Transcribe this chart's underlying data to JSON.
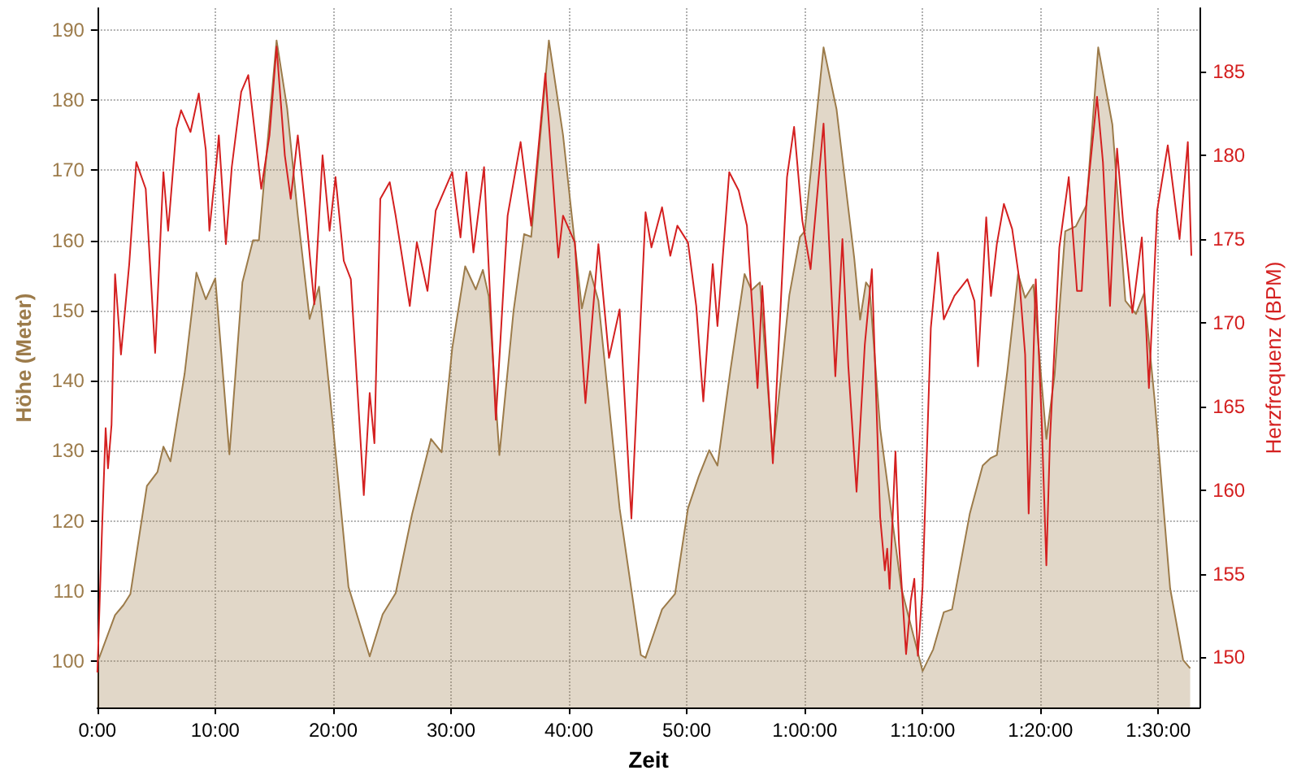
{
  "chart_data": {
    "type": "line",
    "xlabel": "Zeit",
    "ylabel": "Höhe (Meter)",
    "y2label": "Herzfrequenz (BPM)",
    "xlim": [
      0,
      93.5
    ],
    "xticks": [
      {
        "value": 0,
        "label": "0:00"
      },
      {
        "value": 10,
        "label": "10:00"
      },
      {
        "value": 20,
        "label": "20:00"
      },
      {
        "value": 30,
        "label": "30:00"
      },
      {
        "value": 40,
        "label": "40:00"
      },
      {
        "value": 50,
        "label": "50:00"
      },
      {
        "value": 60,
        "label": "1:00:00"
      },
      {
        "value": 70,
        "label": "1:10:00"
      },
      {
        "value": 80,
        "label": "1:20:00"
      },
      {
        "value": 90,
        "label": "1:30:00"
      }
    ],
    "ylim": [
      93.4,
      193.1
    ],
    "yticks": [
      100,
      110,
      120,
      130,
      140,
      150,
      160,
      170,
      180,
      190
    ],
    "y2lim": [
      147,
      188.8
    ],
    "y2ticks": [
      150,
      155,
      160,
      165,
      170,
      175,
      180,
      185
    ],
    "grid": true,
    "marker": "none",
    "line_style": "solid",
    "series": [
      {
        "type": "area",
        "color": "#9c7b4a",
        "x": [
          0,
          1.5,
          2.2,
          2.8,
          4.2,
          5.1,
          5.6,
          6.2,
          7.4,
          8.4,
          9.2,
          10,
          11.2,
          12.3,
          13.2,
          13.7,
          15.2,
          16.1,
          17,
          18,
          18.8,
          20,
          21.3,
          23.1,
          24.2,
          25.3,
          26.7,
          28.3,
          29.2,
          30.1,
          31.2,
          32.1,
          32.7,
          33.2,
          34.1,
          35.3,
          36.2,
          36.8,
          38.3,
          39.5,
          41.1,
          41.8,
          42.5,
          44.3,
          46.1,
          46.5,
          47.9,
          49,
          50.1,
          51,
          51.9,
          52.6,
          53.7,
          54.9,
          55.5,
          56.2,
          57.3,
          58.7,
          59.6,
          60,
          61.6,
          62.7,
          64.2,
          64.7,
          65.2,
          65.5,
          66.4,
          68.2,
          70,
          70.9,
          71.8,
          72.5,
          74,
          75.1,
          75.8,
          76.3,
          77.2,
          78.1,
          78.7,
          79.4,
          80.5,
          81.2,
          82.1,
          83,
          83.9,
          84.9,
          86.1,
          87.2,
          88.1,
          88.8,
          89.7,
          91,
          92.1,
          92.7
        ],
        "values": [
          99.8,
          106.6,
          108,
          109.6,
          125,
          127,
          130.6,
          128.5,
          141,
          155.4,
          151.6,
          154.6,
          129.5,
          154,
          160,
          160,
          188.5,
          178.8,
          163.6,
          148.8,
          153.4,
          133.3,
          110.6,
          100.7,
          106.7,
          109.7,
          121,
          131.7,
          129.8,
          144.6,
          156.3,
          153,
          155.8,
          152,
          129.4,
          149.9,
          160.9,
          160.5,
          188.5,
          175,
          150.3,
          155.6,
          151.4,
          121.8,
          100.9,
          100.5,
          107.4,
          109.6,
          121.8,
          126.3,
          130.1,
          127.9,
          141.5,
          155.2,
          152.9,
          154,
          129.4,
          152.2,
          160.5,
          161.3,
          187.5,
          178.7,
          157.5,
          148.7,
          154,
          153.3,
          133.2,
          110.4,
          98.6,
          101.7,
          107,
          107.4,
          121,
          127.9,
          129,
          129.4,
          141.5,
          155.2,
          151.8,
          153.7,
          131.7,
          140.8,
          161.3,
          162,
          165,
          187.5,
          176.5,
          151.4,
          149.5,
          152.5,
          137,
          110.4,
          100.2,
          99
        ]
      },
      {
        "axis": "y2",
        "color": "#d42020",
        "x": [
          0,
          0.4,
          0.7,
          0.9,
          1.2,
          1.5,
          2,
          2.7,
          3.3,
          4.1,
          4.9,
          5.6,
          6,
          6.7,
          7.1,
          7.9,
          8.6,
          9.2,
          9.5,
          10.1,
          10.3,
          10.9,
          11.4,
          12.2,
          12.8,
          13.9,
          14.6,
          15.2,
          15.9,
          16.4,
          17,
          17.7,
          18.4,
          19.1,
          19.7,
          20.2,
          20.9,
          21.5,
          22.6,
          23.1,
          23.5,
          24,
          24.8,
          25.3,
          26.5,
          27.1,
          28,
          28.7,
          30.1,
          30.8,
          31.3,
          31.9,
          32.8,
          33.8,
          34.8,
          35.9,
          36.8,
          38,
          39.1,
          39.5,
          40.5,
          41.4,
          42.5,
          43.4,
          44.3,
          45.3,
          46.5,
          47,
          47.9,
          48.6,
          49.2,
          50.1,
          50.8,
          51.4,
          52.2,
          52.6,
          53.6,
          54.4,
          55.1,
          56,
          56.4,
          57.3,
          58.5,
          59.1,
          59.8,
          60.5,
          61.6,
          62.6,
          63.2,
          63.7,
          64.4,
          65.1,
          65.7,
          66.4,
          66.8,
          67,
          67.2,
          67.7,
          68,
          68.6,
          69,
          69.3,
          69.6,
          70,
          70.7,
          71.3,
          71.8,
          72.7,
          73.8,
          74.4,
          74.7,
          75.4,
          75.8,
          76.3,
          76.9,
          77.6,
          78.2,
          78.7,
          79,
          79.6,
          80.1,
          80.5,
          80.8,
          81.6,
          82.4,
          83.1,
          83.5,
          83.9,
          84.8,
          85.3,
          85.9,
          86.5,
          87,
          87.8,
          88.6,
          89.2,
          89.9,
          90.8,
          91.8,
          92.5,
          92.8
        ],
        "values": [
          149.1,
          157.8,
          163.7,
          161.3,
          163.9,
          172.9,
          168.1,
          173.5,
          179.6,
          178,
          168.2,
          179,
          175.5,
          181.6,
          182.7,
          181.4,
          183.7,
          180.3,
          175.5,
          179.6,
          181.2,
          174.7,
          179.3,
          183.8,
          184.8,
          178,
          181.2,
          186.5,
          180,
          177.4,
          181.2,
          176.4,
          171.1,
          180,
          175.5,
          178.7,
          173.7,
          172.6,
          159.7,
          165.8,
          162.8,
          177.4,
          178.4,
          176.4,
          171,
          174.8,
          171.9,
          176.7,
          179,
          175.1,
          179,
          174.2,
          179.3,
          164.2,
          176.4,
          180.8,
          175.8,
          184.9,
          173.9,
          176.4,
          174.8,
          165.2,
          174.7,
          167.9,
          170.8,
          158.3,
          176.6,
          174.5,
          176.9,
          174,
          175.8,
          174.8,
          171,
          165.3,
          173.5,
          169.8,
          179,
          177.9,
          175.8,
          166.1,
          172.2,
          161.6,
          178.7,
          181.7,
          176.1,
          173.2,
          181.9,
          166.8,
          175,
          167.4,
          159.9,
          168.7,
          173.2,
          158.4,
          155.2,
          156.5,
          154.1,
          162.3,
          156.8,
          150.2,
          153.4,
          154.7,
          150.1,
          154.2,
          169.7,
          174.2,
          170.2,
          171.6,
          172.6,
          171.3,
          167.4,
          176.3,
          171.6,
          174.7,
          177.1,
          175.6,
          172.6,
          168.1,
          158.6,
          172.6,
          164.2,
          155.5,
          162.9,
          174.5,
          178.7,
          171.9,
          171.9,
          177.2,
          183.5,
          179.6,
          171,
          180.4,
          176.1,
          170.6,
          175.1,
          166.1,
          176.7,
          180.6,
          175,
          180.8,
          174
        ]
      }
    ]
  }
}
